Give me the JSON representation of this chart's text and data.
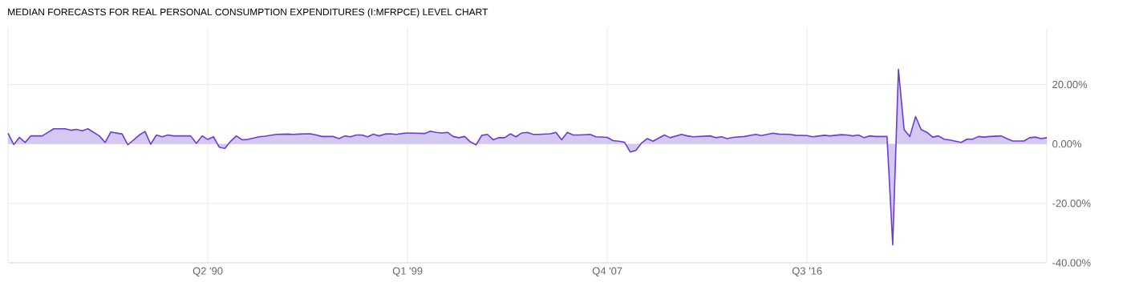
{
  "chart_data": {
    "type": "area",
    "title": "MEDIAN FORECASTS FOR REAL PERSONAL CONSUMPTION EXPENDITURES (I:MFRPCE) LEVEL CHART",
    "x": [
      "1981-07",
      "1981-10",
      "1982-01",
      "1982-04",
      "1982-07",
      "1983-01",
      "1983-07",
      "1984-01",
      "1984-04",
      "1984-07",
      "1984-10",
      "1985-01",
      "1985-07",
      "1985-10",
      "1986-01",
      "1986-07",
      "1986-10",
      "1987-04",
      "1987-07",
      "1987-10",
      "1988-01",
      "1988-04",
      "1988-07",
      "1988-10",
      "1989-07",
      "1989-10",
      "1990-01",
      "1990-04",
      "1990-07",
      "1990-10",
      "1991-01",
      "1991-04",
      "1991-07",
      "1991-10",
      "1992-01",
      "1992-07",
      "1992-10",
      "1993-04",
      "1993-10",
      "1994-01",
      "1994-04",
      "1994-10",
      "1995-01",
      "1995-04",
      "1995-10",
      "1996-01",
      "1996-04",
      "1996-07",
      "1996-10",
      "1997-01",
      "1997-04",
      "1997-07",
      "1997-10",
      "1998-01",
      "1998-04",
      "1998-07",
      "1998-10",
      "1999-01",
      "1999-10",
      "2000-01",
      "2000-04",
      "2000-07",
      "2000-10",
      "2001-01",
      "2001-04",
      "2001-07",
      "2001-10",
      "2002-01",
      "2002-04",
      "2002-07",
      "2002-10",
      "2003-01",
      "2003-04",
      "2003-07",
      "2003-10",
      "2004-01",
      "2004-04",
      "2004-07",
      "2004-10",
      "2005-04",
      "2005-07",
      "2005-10",
      "2006-01",
      "2006-04",
      "2006-07",
      "2007-01",
      "2007-04",
      "2007-10",
      "2008-01",
      "2008-04",
      "2008-07",
      "2008-10",
      "2009-01",
      "2009-04",
      "2009-07",
      "2009-10",
      "2010-04",
      "2010-07",
      "2011-01",
      "2011-04",
      "2011-07",
      "2012-04",
      "2012-07",
      "2012-10",
      "2013-01",
      "2013-04",
      "2013-10",
      "2014-04",
      "2014-07",
      "2015-01",
      "2015-04",
      "2015-10",
      "2016-01",
      "2016-07",
      "2016-10",
      "2017-04",
      "2017-07",
      "2018-01",
      "2018-04",
      "2018-07",
      "2018-10",
      "2019-01",
      "2019-04",
      "2019-07",
      "2020-01",
      "2020-04",
      "2020-07",
      "2020-10",
      "2021-01",
      "2021-04",
      "2021-07",
      "2021-10",
      "2022-01",
      "2022-04",
      "2022-07",
      "2022-10",
      "2023-04",
      "2023-07",
      "2023-10",
      "2024-01",
      "2024-04",
      "2024-07",
      "2025-01",
      "2025-04",
      "2025-07",
      "2026-01",
      "2026-04",
      "2026-07",
      "2026-10",
      "2027-01"
    ],
    "series": [
      {
        "color": "#6a3dd1",
        "values": [
          3.6,
          -0.2,
          2.2,
          0.5,
          2.7,
          2.7,
          5.1,
          5.1,
          4.6,
          4.9,
          4.4,
          5.1,
          2.7,
          0.5,
          4.0,
          3.3,
          -0.3,
          3.0,
          4.2,
          -0.1,
          3.0,
          2.4,
          3.0,
          2.7,
          2.7,
          0.2,
          2.7,
          1.5,
          2.4,
          -1.1,
          -1.5,
          0.9,
          2.7,
          1.4,
          1.5,
          2.4,
          2.6,
          3.2,
          3.3,
          3.2,
          3.3,
          3.4,
          3.0,
          2.5,
          2.5,
          1.8,
          2.7,
          2.4,
          3.0,
          3.0,
          2.4,
          3.3,
          2.7,
          3.3,
          3.4,
          3.2,
          3.5,
          3.7,
          3.5,
          4.3,
          3.9,
          3.7,
          3.9,
          2.5,
          2.1,
          2.5,
          0.7,
          -0.3,
          2.9,
          3.2,
          1.4,
          2.1,
          2.1,
          3.4,
          2.4,
          3.7,
          3.9,
          3.2,
          3.2,
          3.4,
          3.9,
          1.4,
          3.9,
          3.0,
          3.0,
          3.2,
          2.4,
          2.2,
          1.1,
          0.9,
          0.6,
          -2.7,
          -2.2,
          0.3,
          1.8,
          0.9,
          3.0,
          2.1,
          3.2,
          2.7,
          2.4,
          2.7,
          2.1,
          2.4,
          1.8,
          2.2,
          2.5,
          3.2,
          2.8,
          3.6,
          3.3,
          3.2,
          2.9,
          2.8,
          2.4,
          2.9,
          2.7,
          3.1,
          3.0,
          2.7,
          3.0,
          2.1,
          2.7,
          2.5,
          2.5,
          -34.0,
          25.1,
          4.8,
          2.5,
          9.2,
          4.8,
          3.9,
          2.3,
          2.7,
          1.6,
          1.3,
          0.5,
          1.6,
          1.6,
          2.5,
          2.3,
          2.5,
          2.7,
          1.8,
          1.0,
          1.0,
          2.1,
          2.3,
          1.8,
          2.1
        ]
      }
    ],
    "xlim": [
      "1981-07",
      "2027-01"
    ],
    "xticks": [
      {
        "value": "1990-04",
        "label": "Q2 '90"
      },
      {
        "value": "1999-01",
        "label": "Q1 '99"
      },
      {
        "value": "2007-10",
        "label": "Q4 '07"
      },
      {
        "value": "2016-07",
        "label": "Q3 '16"
      }
    ],
    "ylim": [
      -40,
      39
    ],
    "yticks": [
      {
        "value": -40,
        "label": "-40.00%"
      },
      {
        "value": -20,
        "label": "-20.00%"
      },
      {
        "value": 0,
        "label": "0.00%"
      },
      {
        "value": 20,
        "label": "20.00%"
      }
    ],
    "grid": true
  }
}
